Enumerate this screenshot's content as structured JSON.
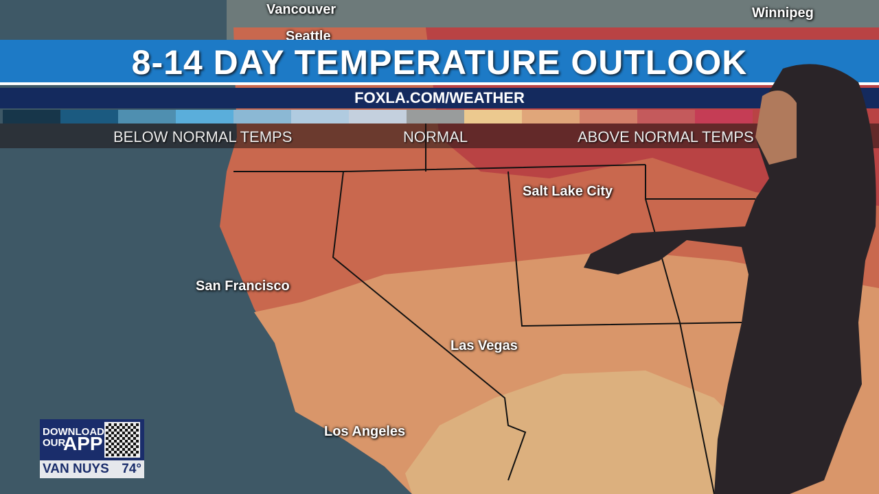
{
  "broadcast": {
    "title": "8-14 DAY TEMPERATURE OUTLOOK",
    "url": "FOXLA.COM/WEATHER"
  },
  "legend": {
    "colors": [
      "#17364a",
      "#1b5a80",
      "#4f8fb0",
      "#5aaedb",
      "#8bb8d4",
      "#b0cbe0",
      "#c4d0de",
      "#999c9c",
      "#ecc98f",
      "#e0a67a",
      "#d4806a",
      "#c45a5c",
      "#c53d55"
    ],
    "labels": {
      "below": "BELOW NORMAL TEMPS",
      "normal": "NORMAL",
      "above": "ABOVE NORMAL TEMPS"
    }
  },
  "map": {
    "cities": [
      "Vancouver",
      "Seattle",
      "Winnipeg",
      "Salt Lake City",
      "San Francisco",
      "Las Vegas",
      "Los Angeles"
    ],
    "colors": {
      "ocean": "#3e5866",
      "normal": "#dcb07e",
      "slightly_above": "#d9966a",
      "above": "#c9684e",
      "much_above": "#b94344"
    }
  },
  "app_promo": {
    "line1": "DOWNLOAD",
    "line2": "OUR",
    "line3": "APP",
    "location": "VAN NUYS",
    "temperature": "74°"
  }
}
